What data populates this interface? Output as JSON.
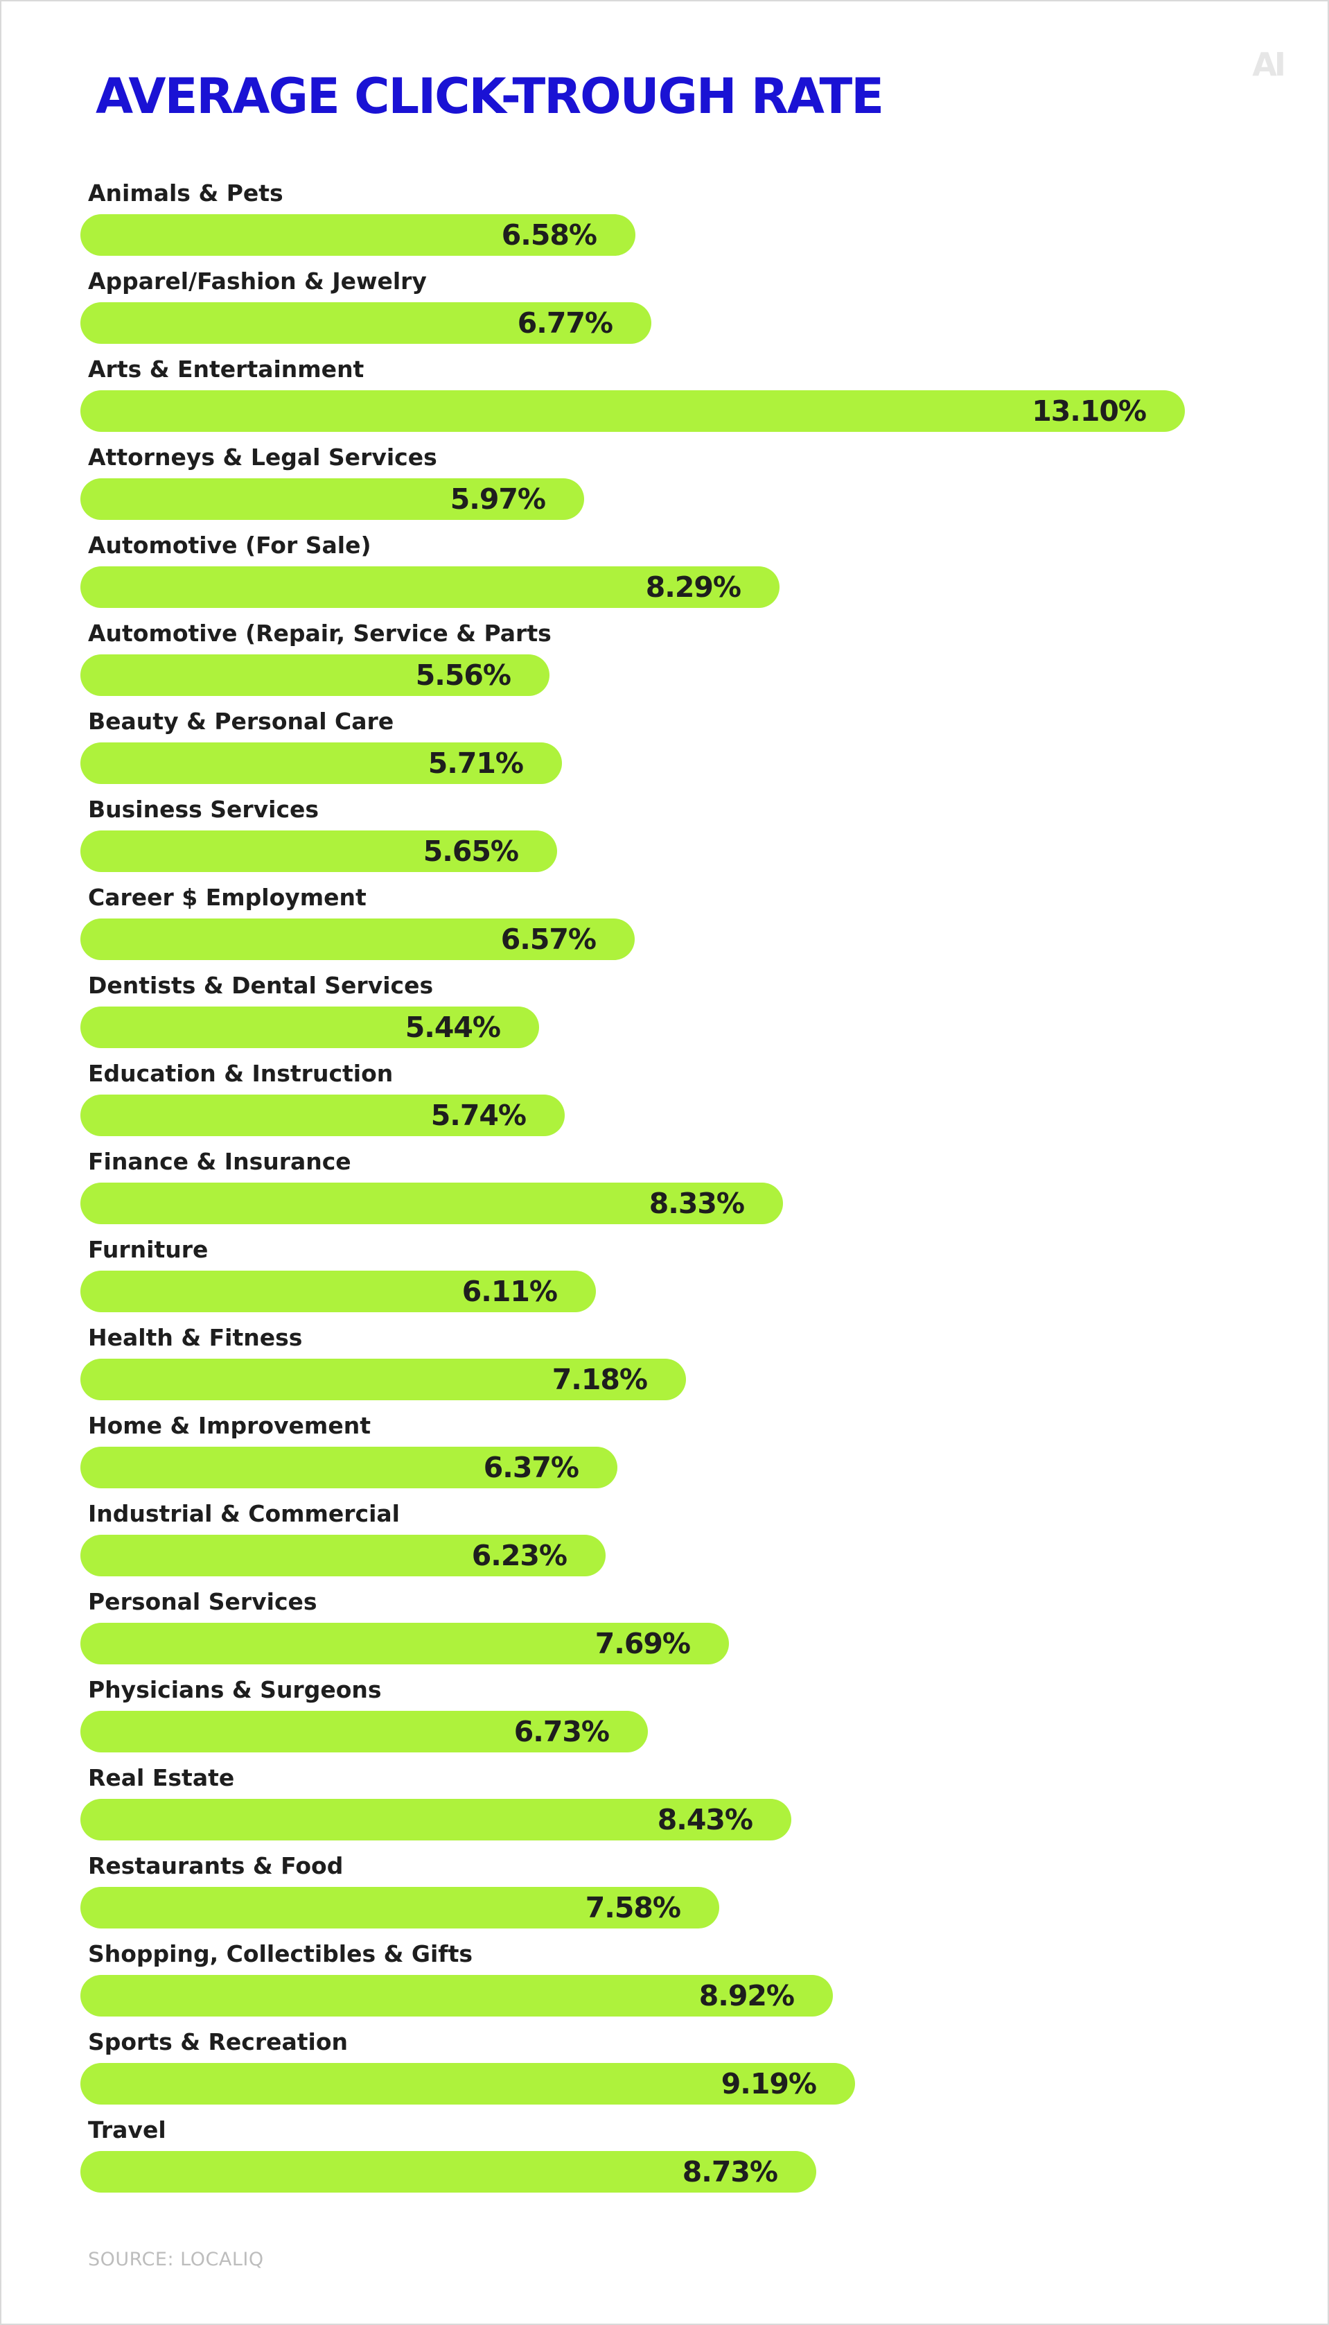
{
  "brand": {
    "logo_text": "AI",
    "title_color": "#1a12d4",
    "bar_color": "#aef23c",
    "text_color": "#1e1e1e"
  },
  "chart_data": {
    "type": "bar",
    "orientation": "horizontal",
    "title": "AVERAGE CLICK-TROUGH RATE",
    "categories": [
      "Animals & Pets",
      "Apparel/Fashion & Jewelry",
      "Arts & Entertainment",
      "Attorneys & Legal Services",
      "Automotive (For Sale)",
      "Automotive (Repair, Service & Parts",
      "Beauty & Personal Care",
      "Business Services",
      "Career $ Employment",
      "Dentists & Dental Services",
      "Education & Instruction",
      "Finance & Insurance",
      "Furniture",
      "Health & Fitness",
      "Home & Improvement",
      "Industrial & Commercial",
      "Personal Services",
      "Physicians & Surgeons",
      "Real Estate",
      "Restaurants & Food",
      "Shopping, Collectibles & Gifts",
      "Sports & Recreation",
      "Travel"
    ],
    "values": [
      6.58,
      6.77,
      13.1,
      5.97,
      8.29,
      5.56,
      5.71,
      5.65,
      6.57,
      5.44,
      5.74,
      8.33,
      6.11,
      7.18,
      6.37,
      6.23,
      7.69,
      6.73,
      8.43,
      7.58,
      8.92,
      9.19,
      8.73
    ],
    "value_labels": [
      "6.58%",
      "6.77%",
      "13.10%",
      "5.97%",
      "8.29%",
      "5.56%",
      "5.71%",
      "5.65%",
      "6.57%",
      "5.44%",
      "5.74%",
      "8.33%",
      "6.11%",
      "7.18%",
      "6.37%",
      "6.23%",
      "7.69%",
      "6.73%",
      "8.43%",
      "7.58%",
      "8.92%",
      "9.19%",
      "8.73%"
    ],
    "unit": "%",
    "grid": false,
    "legend": "none"
  },
  "footer": {
    "source": "SOURCE: LOCALIQ"
  }
}
